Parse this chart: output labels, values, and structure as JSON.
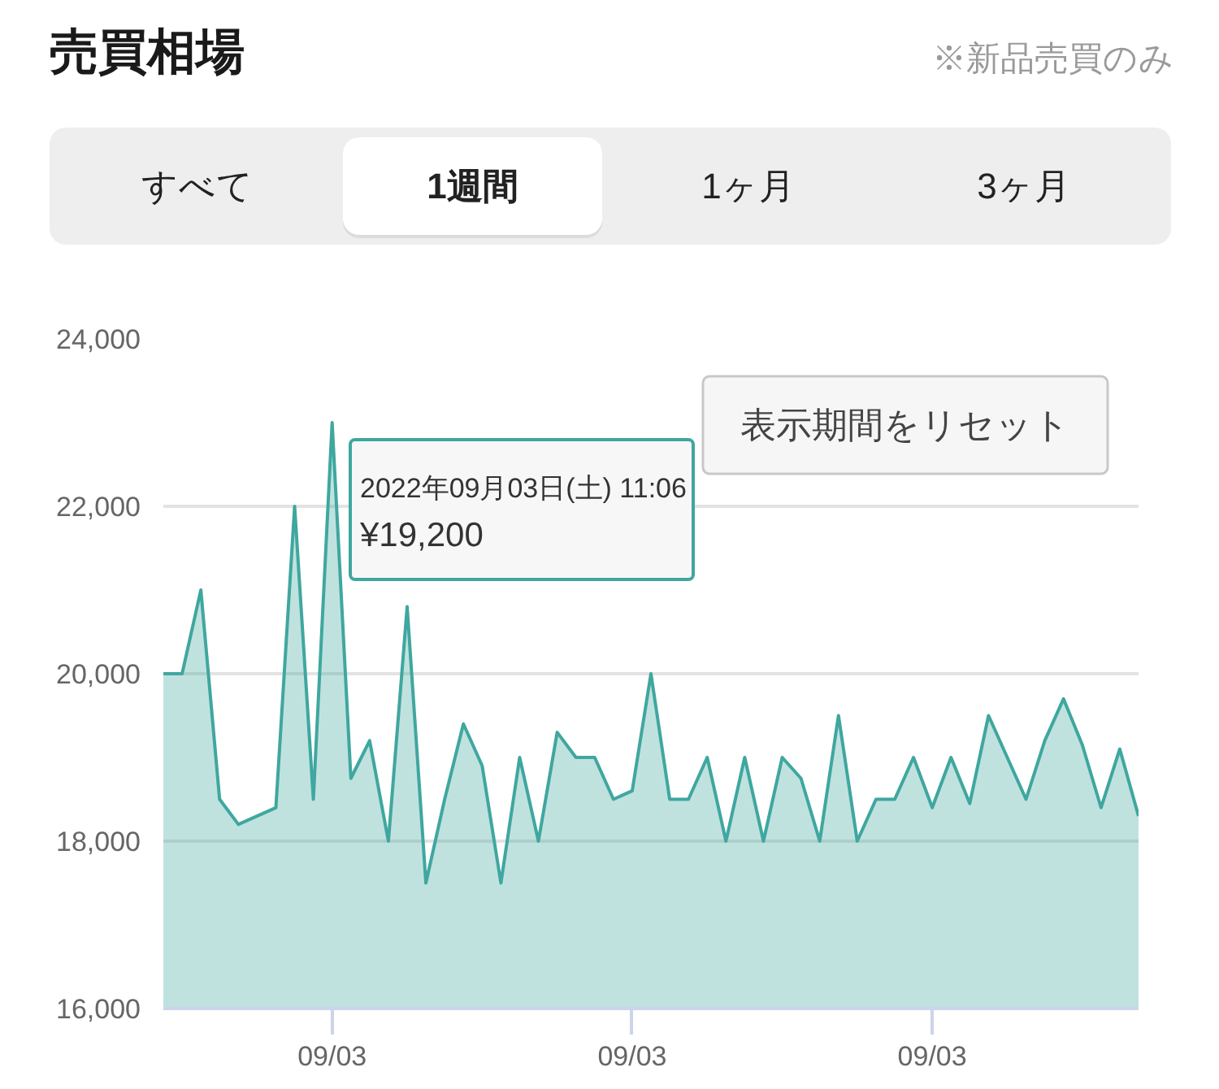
{
  "chart_data": {
    "type": "area",
    "title": "売買相場",
    "subtitle": "※新品売買のみ",
    "categories": [
      null,
      null,
      null,
      null,
      null,
      null,
      null,
      null,
      null,
      "09/03",
      null,
      null,
      null,
      null,
      null,
      null,
      null,
      null,
      null,
      null,
      null,
      null,
      null,
      null,
      null,
      "09/03",
      null,
      null,
      null,
      null,
      null,
      null,
      null,
      null,
      null,
      null,
      null,
      null,
      null,
      null,
      null,
      "09/03",
      null,
      null,
      null,
      null,
      null,
      null,
      null,
      null,
      null,
      null,
      null
    ],
    "series": [
      {
        "color": "#3fa79f",
        "values": [
          20000,
          20000,
          21000,
          18500,
          18200,
          18300,
          18400,
          22000,
          18500,
          23000,
          18750,
          19200,
          18000,
          20800,
          17500,
          18500,
          19400,
          18900,
          17500,
          19000,
          18000,
          19300,
          19000,
          19000,
          18500,
          18600,
          20000,
          18500,
          18500,
          19000,
          18000,
          19000,
          18000,
          19000,
          18750,
          18000,
          19500,
          18000,
          18500,
          18500,
          19000,
          18400,
          19000,
          18450,
          19500,
          19000,
          18500,
          19200,
          19700,
          19150,
          18400,
          19100,
          18300
        ]
      }
    ],
    "ylim": [
      16000,
      24000
    ],
    "yticks": [
      {
        "value": 16000,
        "label": "16,000"
      },
      {
        "value": 18000,
        "label": "18,000"
      },
      {
        "value": 20000,
        "label": "20,000"
      },
      {
        "value": 22000,
        "label": "22,000"
      },
      {
        "value": 24000,
        "label": "24,000"
      }
    ],
    "grid": "y",
    "annotations": [
      "すべて",
      "1週間",
      "1ヶ月",
      "3ヶ月",
      "表示期間をリセット",
      "2022年09月03日(土) 11:06\n¥19,200"
    ]
  }
}
